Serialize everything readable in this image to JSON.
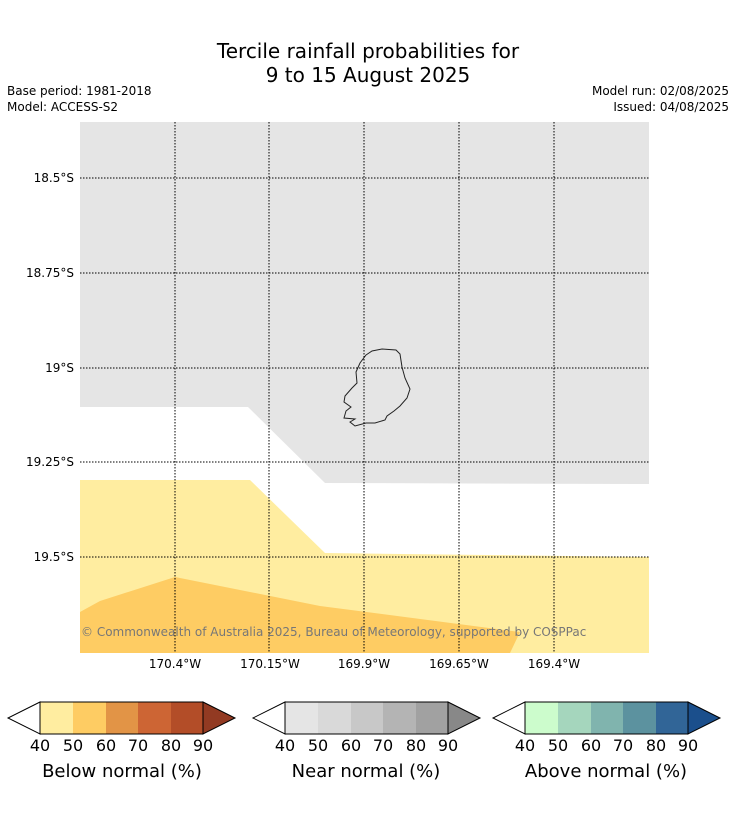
{
  "title_line1": "Tercile rainfall probabilities for",
  "title_line2": "9 to 15 August 2025",
  "base_period": "Base period: 1981-2018",
  "model": "Model: ACCESS-S2",
  "model_run": "Model run: 02/08/2025",
  "issued": "Issued: 04/08/2025",
  "copyright": "© Commonwealth of Australia 2025, Bureau of Meteorology, supported by COSPPac",
  "lat_labels": [
    "18.5°S",
    "18.75°S",
    "19°S",
    "19.25°S",
    "19.5°S"
  ],
  "lon_labels": [
    "170.4°W",
    "170.15°W",
    "169.9°W",
    "169.65°W",
    "169.4°W"
  ],
  "colorbars": [
    {
      "label": "Below normal (%)",
      "ticks": [
        "40",
        "50",
        "60",
        "70",
        "80",
        "90"
      ],
      "colors": [
        "#ffeda0",
        "#fecc63",
        "#e29446",
        "#cd6534",
        "#b34d28",
        "#923a22"
      ]
    },
    {
      "label": "Near normal (%)",
      "ticks": [
        "40",
        "50",
        "60",
        "70",
        "80",
        "90"
      ],
      "colors": [
        "#e5e5e5",
        "#d9d9d9",
        "#c8c8c8",
        "#b4b4b4",
        "#a1a1a1",
        "#888888"
      ]
    },
    {
      "label": "Above normal (%)",
      "ticks": [
        "40",
        "50",
        "60",
        "70",
        "80",
        "90"
      ],
      "colors": [
        "#ccfccc",
        "#a5d6bd",
        "#80b4ae",
        "#5c929f",
        "#316597",
        "#1b4f8c"
      ]
    }
  ],
  "map_colors": {
    "near_normal_fill": "#e5e5e5",
    "below_normal_40_50": "#ffeda0",
    "below_normal_50_60": "#fecc63"
  }
}
